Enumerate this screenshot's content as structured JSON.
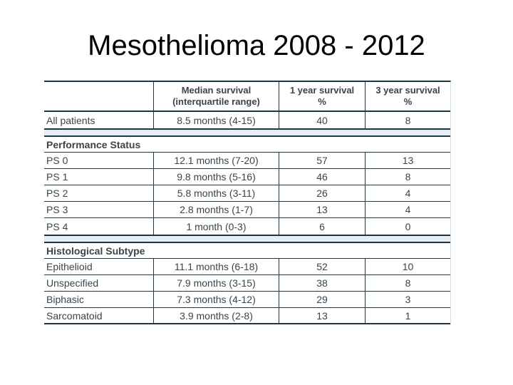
{
  "slide": {
    "title": "Mesothelioma 2008 - 2012"
  },
  "colors": {
    "table_line": "#1d3845",
    "section_band": "#e8edf3",
    "table_text": "#3d434a",
    "title_text": "#000000",
    "background": "#ffffff"
  },
  "table": {
    "columns": [
      {
        "title": "",
        "subtitle": ""
      },
      {
        "title": "Median survival",
        "subtitle": "(interquartile range)"
      },
      {
        "title": "1 year survival",
        "subtitle": "%"
      },
      {
        "title": "3 year survival",
        "subtitle": "%"
      }
    ],
    "sections": [
      {
        "label": "Performance Status"
      },
      {
        "label": "Histological Subtype"
      }
    ],
    "rows": [
      {
        "label": "All patients",
        "median": "8.5 months (4-15)",
        "one_year": "40",
        "three_year": "8"
      },
      {
        "label": "PS 0",
        "median": "12.1 months (7-20)",
        "one_year": "57",
        "three_year": "13"
      },
      {
        "label": "PS 1",
        "median": "9.8 months (5-16)",
        "one_year": "46",
        "three_year": "8"
      },
      {
        "label": "PS 2",
        "median": "5.8 months (3-11)",
        "one_year": "26",
        "three_year": "4"
      },
      {
        "label": "PS 3",
        "median": "2.8 months (1-7)",
        "one_year": "13",
        "three_year": "4"
      },
      {
        "label": "PS 4",
        "median": "1 month (0-3)",
        "one_year": "6",
        "three_year": "0"
      },
      {
        "label": "Epithelioid",
        "median": "11.1 months (6-18)",
        "one_year": "52",
        "three_year": "10"
      },
      {
        "label": "Unspecified",
        "median": "7.9 months (3-15)",
        "one_year": "38",
        "three_year": "8"
      },
      {
        "label": "Biphasic",
        "median": "7.3 months (4-12)",
        "one_year": "29",
        "three_year": "3"
      },
      {
        "label": "Sarcomatoid",
        "median": "3.9 months (2-8)",
        "one_year": "13",
        "three_year": "1"
      }
    ]
  }
}
